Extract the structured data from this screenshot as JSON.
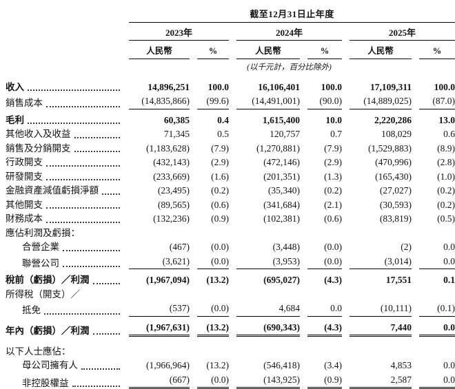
{
  "header": {
    "title": "截至12月31日止年度",
    "note": "(以千元計，百分比除外)",
    "year_groups": [
      {
        "year": "2023年",
        "currency": "人民幣",
        "percent": "%"
      },
      {
        "year": "2024年",
        "currency": "人民幣",
        "percent": "%"
      },
      {
        "year": "2025年",
        "currency": "人民幣",
        "percent": "%"
      }
    ]
  },
  "table": {
    "rows": [
      {
        "label": "收入",
        "bold": true,
        "values": [
          "14,896,251",
          "100.0",
          "16,106,401",
          "100.0",
          "17,109,311",
          "100.0"
        ]
      },
      {
        "label": "銷售成本",
        "rule": "single",
        "values": [
          "(14,835,866)",
          "(99.6)",
          "(14,491,001)",
          "(90.0)",
          "(14,889,025)",
          "(87.0)"
        ]
      },
      {
        "label": "毛利",
        "bold": true,
        "space": "sm",
        "values": [
          "60,385",
          "0.4",
          "1,615,400",
          "10.0",
          "2,220,286",
          "13.0"
        ]
      },
      {
        "label": "其他收入及收益",
        "values": [
          "71,345",
          "0.5",
          "120,757",
          "0.7",
          "108,029",
          "0.6"
        ]
      },
      {
        "label": "銷售及分銷開支",
        "values": [
          "(1,183,628)",
          "(7.9)",
          "(1,270,881)",
          "(7.9)",
          "(1,529,883)",
          "(8.9)"
        ]
      },
      {
        "label": "行政開支",
        "values": [
          "(432,143)",
          "(2.9)",
          "(472,146)",
          "(2.9)",
          "(470,996)",
          "(2.8)"
        ]
      },
      {
        "label": "研發開支",
        "values": [
          "(233,669)",
          "(1.6)",
          "(201,351)",
          "(1.3)",
          "(165,430)",
          "(1.0)"
        ]
      },
      {
        "label": "金融資產減值虧損淨額",
        "values": [
          "(23,495)",
          "(0.2)",
          "(35,340)",
          "(0.2)",
          "(27,027)",
          "(0.2)"
        ]
      },
      {
        "label": "其他開支",
        "values": [
          "(89,565)",
          "(0.6)",
          "(341,684)",
          "(2.1)",
          "(30,593)",
          "(0.2)"
        ]
      },
      {
        "label": "財務成本",
        "values": [
          "(132,236)",
          "(0.9)",
          "(102,381)",
          "(0.6)",
          "(83,819)",
          "(0.5)"
        ]
      },
      {
        "label": "應佔利潤及虧損：",
        "section": true
      },
      {
        "label": "合營企業",
        "indent": true,
        "values": [
          "(467)",
          "(0.0)",
          "(3,448)",
          "(0.0)",
          "(2)",
          "0.0"
        ]
      },
      {
        "label": "聯營公司",
        "indent": true,
        "rule": "single",
        "values": [
          "(3,621)",
          "(0.0)",
          "(3,953)",
          "(0.0)",
          "(3,014)",
          "0.0"
        ]
      },
      {
        "label": "稅前（虧損）／利潤",
        "bold": true,
        "space": "sm",
        "values": [
          "(1,967,094)",
          "(13.2)",
          "(695,027)",
          "(4.3)",
          "17,551",
          "0.1"
        ]
      },
      {
        "label": "所得稅（開支）／",
        "section": true
      },
      {
        "label": "抵免",
        "indent": true,
        "rule": "single",
        "values": [
          "(537)",
          "(0.0)",
          "4,684",
          "0.0",
          "(10,111)",
          "(0.1)"
        ]
      },
      {
        "label": "年內（虧損）／利潤",
        "bold": true,
        "space": "sm",
        "rule": "double",
        "values": [
          "(1,967,631)",
          "(13.2)",
          "(690,343)",
          "(4.3)",
          "7,440",
          "0.0"
        ]
      },
      {
        "label": "以下人士應佔：",
        "section": true,
        "space": "lg"
      },
      {
        "label": "母公司擁有人",
        "indent": true,
        "values": [
          "(1,966,964)",
          "(13.2)",
          "(546,418)",
          "(3.4)",
          "4,853",
          "0.0"
        ]
      },
      {
        "label": "非控股權益",
        "indent": true,
        "rule": "double",
        "values": [
          "(667)",
          "(0.0)",
          "(143,925)",
          "(0.9)",
          "2,587",
          "0.0"
        ]
      }
    ]
  }
}
